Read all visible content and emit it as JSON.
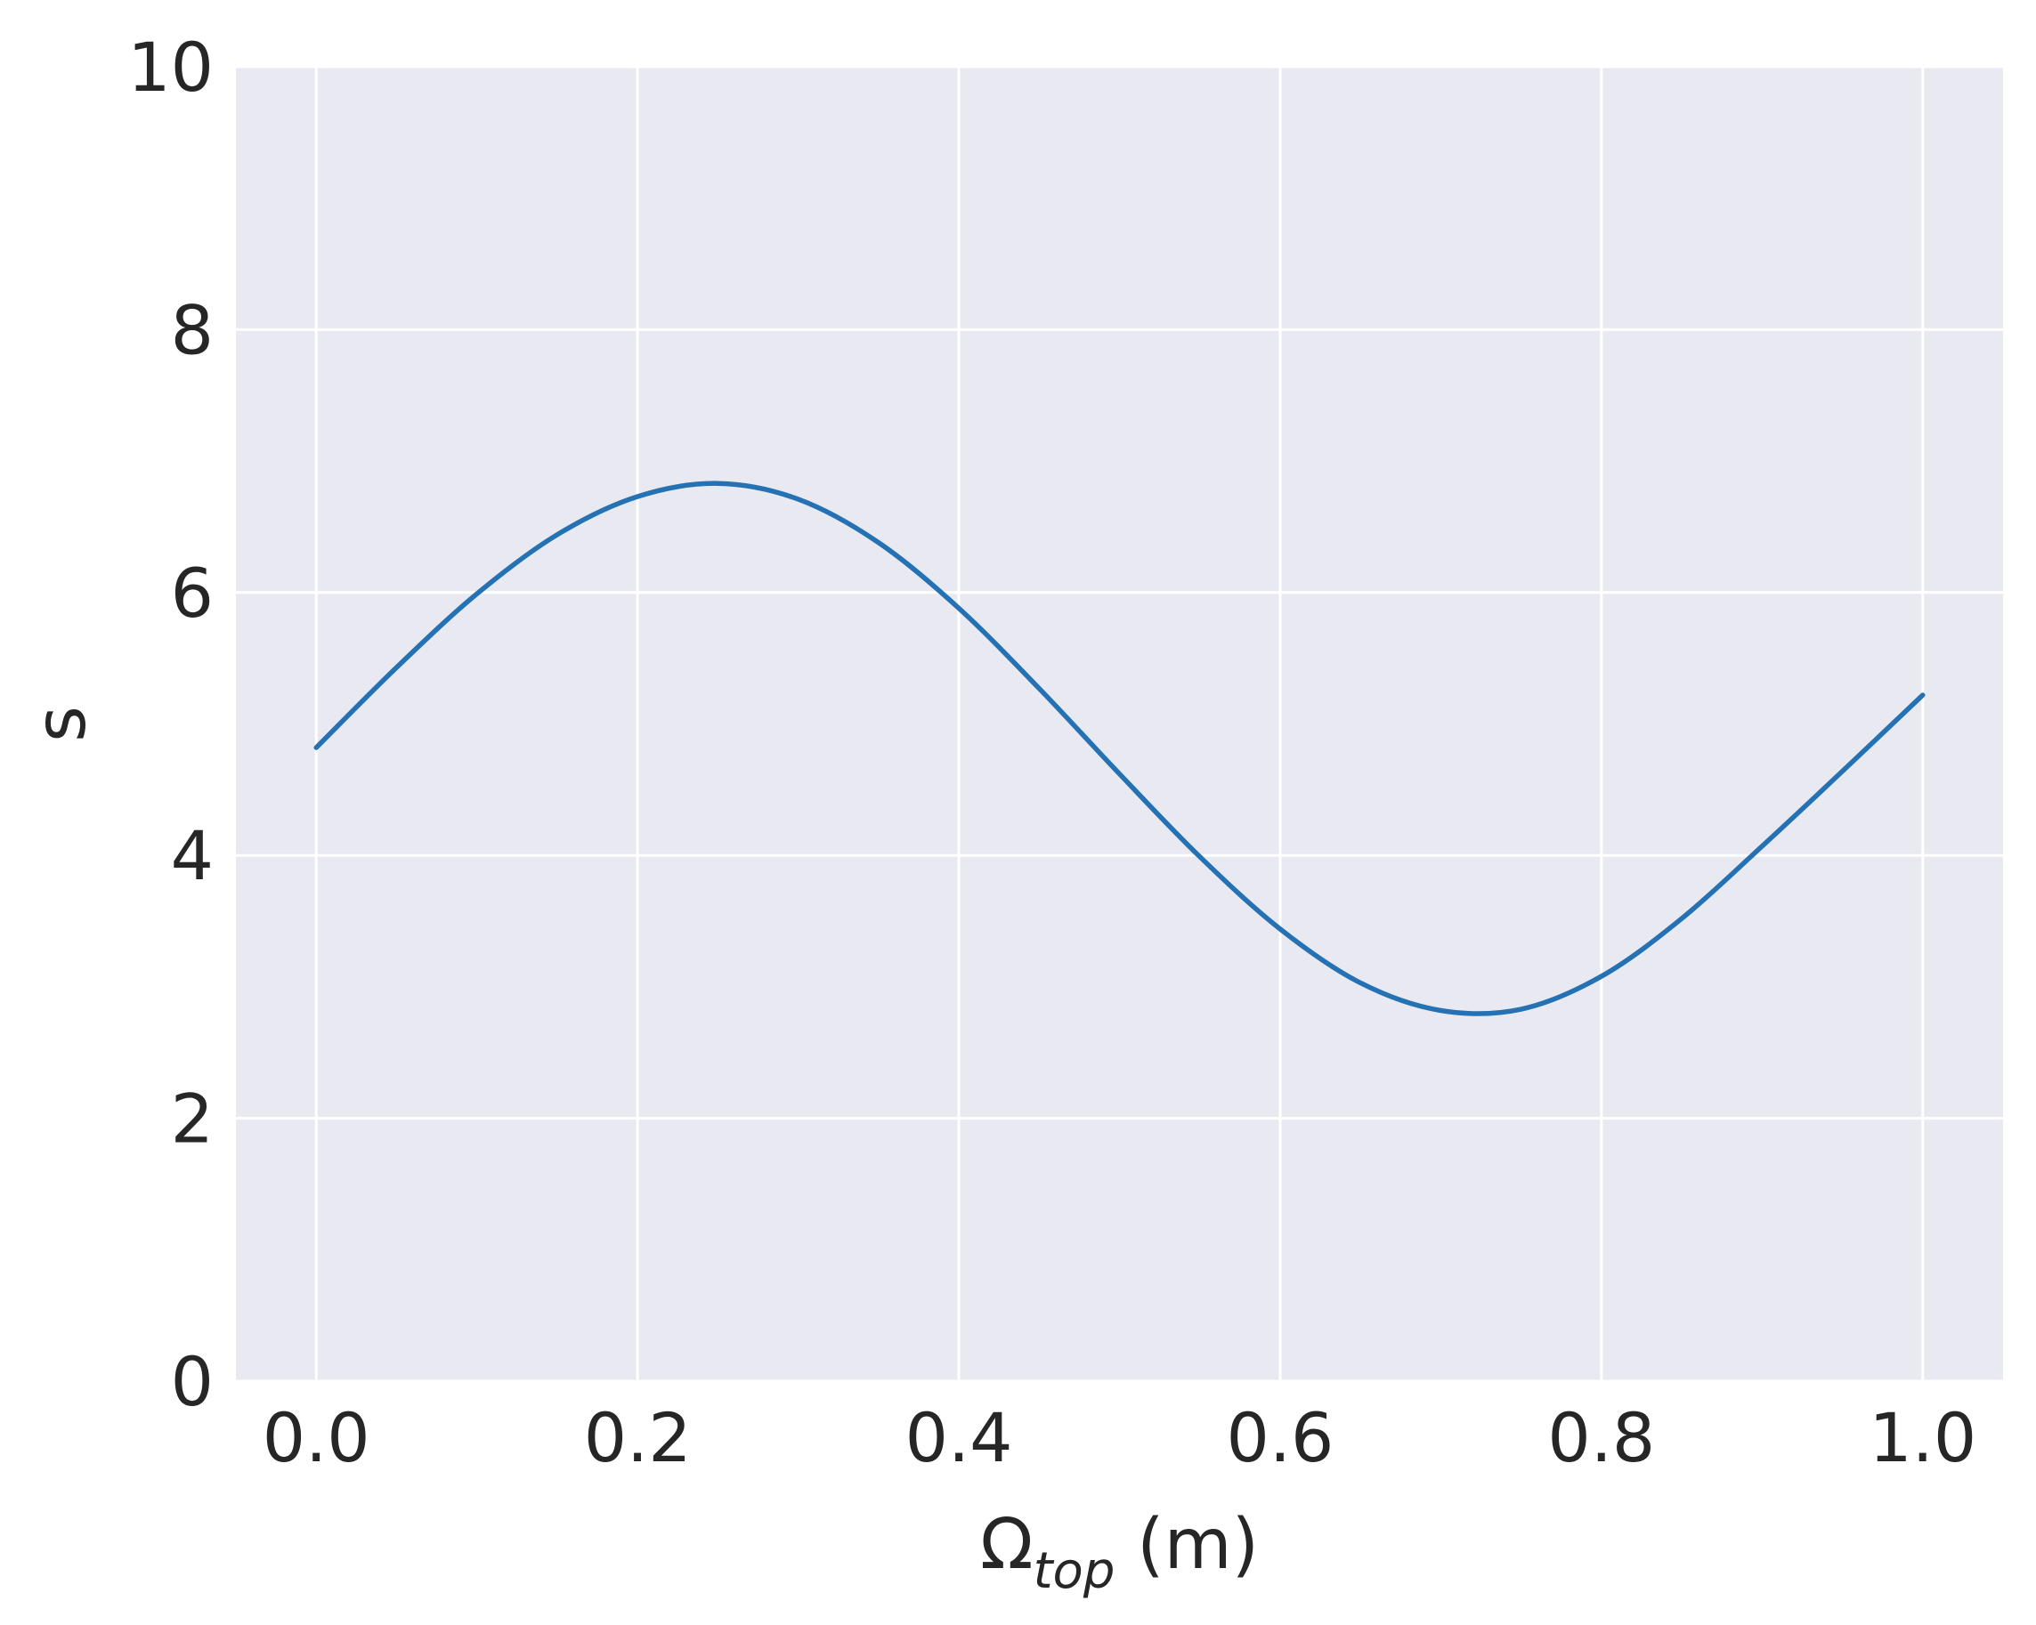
{
  "chart_data": {
    "type": "line",
    "title": "",
    "xlabel": {
      "main": "Ω",
      "subscript": "top",
      "unit": " (m)"
    },
    "ylabel": "s",
    "xlim": [
      -0.05,
      1.05
    ],
    "ylim": [
      0,
      10
    ],
    "x_ticks": [
      0.0,
      0.2,
      0.4,
      0.6,
      0.8,
      1.0
    ],
    "x_tick_labels": [
      "0.0",
      "0.2",
      "0.4",
      "0.6",
      "0.8",
      "1.0"
    ],
    "y_ticks": [
      0,
      2,
      4,
      6,
      8,
      10
    ],
    "y_tick_labels": [
      "0",
      "2",
      "4",
      "6",
      "8",
      "10"
    ],
    "grid": true,
    "legend": "none",
    "series": [
      {
        "color": "#2471b3",
        "x": [
          0.0,
          0.05,
          0.1,
          0.15,
          0.2,
          0.25,
          0.3,
          0.35,
          0.4,
          0.45,
          0.5,
          0.55,
          0.6,
          0.65,
          0.7,
          0.75,
          0.8,
          0.85,
          0.9,
          0.95,
          1.0
        ],
        "y": [
          4.82,
          5.43,
          5.99,
          6.44,
          6.73,
          6.83,
          6.71,
          6.38,
          5.88,
          5.27,
          4.62,
          3.99,
          3.44,
          3.03,
          2.82,
          2.83,
          3.08,
          3.52,
          4.07,
          4.64,
          5.22
        ]
      }
    ],
    "colors": {
      "plot_background": "#e9e9f2",
      "grid": "#ffffff",
      "text": "#262626"
    }
  }
}
